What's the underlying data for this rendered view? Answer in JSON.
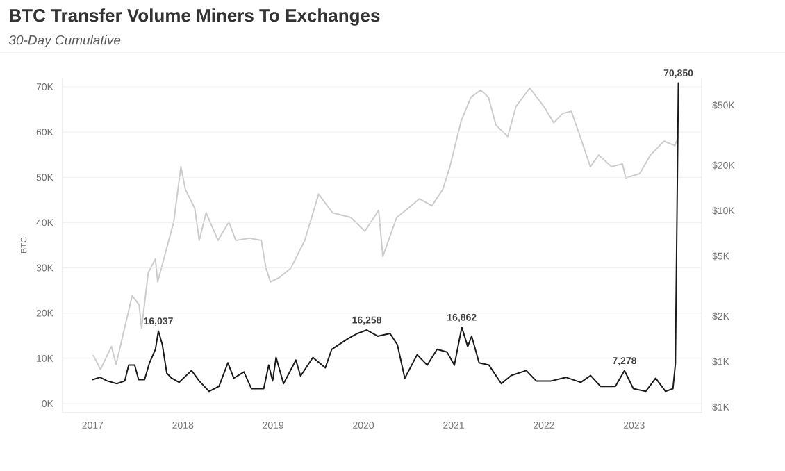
{
  "chart_data": {
    "type": "line",
    "title": "BTC Transfer Volume Miners To Exchanges",
    "subtitle": "30-Day Cumulative",
    "ylabel": "BTC",
    "xlim": [
      "2016-09-01",
      "2023-10-01"
    ],
    "xticks": [
      "2017",
      "2018",
      "2019",
      "2020",
      "2021",
      "2022",
      "2023"
    ],
    "ylim": [
      -2000,
      72000
    ],
    "yticks": [
      {
        "value": 0,
        "label": "0K"
      },
      {
        "value": 10000,
        "label": "10K"
      },
      {
        "value": 20000,
        "label": "20K"
      },
      {
        "value": 30000,
        "label": "30K"
      },
      {
        "value": 40000,
        "label": "40K"
      },
      {
        "value": 50000,
        "label": "50K"
      },
      {
        "value": 60000,
        "label": "60K"
      },
      {
        "value": 70000,
        "label": "70K"
      }
    ],
    "y2lim": [
      460,
      76000
    ],
    "y2ticks": [
      {
        "value": 500,
        "label": "$1K"
      },
      {
        "value": 1000,
        "label": "$1K"
      },
      {
        "value": 2000,
        "label": "$2K"
      },
      {
        "value": 5000,
        "label": "$5K"
      },
      {
        "value": 10000,
        "label": "$10K"
      },
      {
        "value": 20000,
        "label": "$20K"
      },
      {
        "value": 50000,
        "label": "$50K"
      }
    ],
    "log": "y2",
    "grid": "y",
    "series": [
      {
        "color": "#cccccc",
        "axis": "y2",
        "x": [
          "2017-01-04",
          "2017-02-02",
          "2017-03-18",
          "2017-04-06",
          "2017-06-10",
          "2017-07-08",
          "2017-07-18",
          "2017-08-14",
          "2017-09-12",
          "2017-09-21",
          "2017-11-25",
          "2017-12-24",
          "2018-01-11",
          "2018-02-18",
          "2018-03-08",
          "2018-04-05",
          "2018-05-23",
          "2018-07-06",
          "2018-08-03",
          "2018-09-28",
          "2018-11-14",
          "2018-12-03",
          "2018-12-21",
          "2019-01-27",
          "2019-03-14",
          "2019-05-09",
          "2019-07-04",
          "2019-08-29",
          "2019-11-11",
          "2020-01-07",
          "2020-03-03",
          "2020-03-20",
          "2020-05-15",
          "2020-07-01",
          "2020-08-15",
          "2020-10-05",
          "2020-11-18",
          "2020-12-17",
          "2021-02-01",
          "2021-03-12",
          "2021-04-20",
          "2021-05-22",
          "2021-06-21",
          "2021-08-08",
          "2021-09-10",
          "2021-11-05",
          "2022-01-01",
          "2022-02-10",
          "2022-03-19",
          "2022-04-22",
          "2022-05-31",
          "2022-07-08",
          "2022-08-11",
          "2022-10-01",
          "2022-11-15",
          "2022-11-28",
          "2023-01-23",
          "2023-03-08",
          "2023-05-02",
          "2023-06-15",
          "2023-06-28"
        ],
        "values": [
          1100,
          890,
          1260,
          960,
          2740,
          2380,
          1670,
          3890,
          4800,
          3380,
          8430,
          19600,
          13850,
          10400,
          6370,
          9700,
          6370,
          8430,
          6370,
          6580,
          6370,
          4170,
          3380,
          3620,
          4170,
          6370,
          12900,
          9700,
          9030,
          7330,
          10080,
          4980,
          9030,
          10400,
          12000,
          10800,
          13850,
          19600,
          39600,
          56500,
          63000,
          56500,
          37000,
          31000,
          49000,
          65000,
          49000,
          38300,
          44200,
          45600,
          29900,
          19600,
          23400,
          19600,
          20400,
          16500,
          17600,
          23400,
          28900,
          27000,
          31000
        ]
      },
      {
        "color": "#1a1a1a",
        "x": [
          "2017-01-01",
          "2017-01-31",
          "2017-03-01",
          "2017-04-09",
          "2017-05-11",
          "2017-05-27",
          "2017-06-20",
          "2017-07-06",
          "2017-07-30",
          "2017-08-19",
          "2017-09-12",
          "2017-09-24",
          "2017-10-10",
          "2017-10-28",
          "2017-11-17",
          "2017-12-17",
          "2018-02-05",
          "2018-03-08",
          "2018-04-17",
          "2018-05-27",
          "2018-07-02",
          "2018-07-26",
          "2018-09-05",
          "2018-10-05",
          "2018-11-24",
          "2018-12-14",
          "2018-12-30",
          "2019-01-13",
          "2019-02-12",
          "2019-04-03",
          "2019-04-22",
          "2019-06-11",
          "2019-07-31",
          "2019-08-26",
          "2019-10-29",
          "2019-12-08",
          "2020-01-15",
          "2020-02-28",
          "2020-04-18",
          "2020-05-18",
          "2020-06-17",
          "2020-08-06",
          "2020-09-16",
          "2020-10-26",
          "2020-12-05",
          "2021-01-04",
          "2021-02-03",
          "2021-02-27",
          "2021-03-15",
          "2021-04-14",
          "2021-05-24",
          "2021-07-13",
          "2021-08-22",
          "2021-10-22",
          "2021-12-01",
          "2022-01-30",
          "2022-03-31",
          "2022-05-30",
          "2022-07-09",
          "2022-08-18",
          "2022-10-17",
          "2022-11-23",
          "2022-12-29",
          "2023-02-17",
          "2023-03-29",
          "2023-05-08",
          "2023-06-07",
          "2023-06-17",
          "2023-06-29"
        ],
        "values": [
          5300,
          5800,
          5000,
          4400,
          5000,
          8500,
          8500,
          5300,
          5300,
          9000,
          12000,
          16037,
          13000,
          6700,
          5600,
          4700,
          7300,
          5000,
          2700,
          3800,
          9000,
          5600,
          7000,
          3300,
          3300,
          8500,
          5000,
          10200,
          4400,
          9600,
          6100,
          10200,
          7900,
          12000,
          14300,
          15500,
          16258,
          14900,
          15500,
          13000,
          5600,
          10800,
          8500,
          12000,
          11400,
          8500,
          16862,
          12600,
          14900,
          9000,
          8500,
          4400,
          6200,
          7300,
          5000,
          5000,
          5800,
          4700,
          6200,
          3800,
          3800,
          7278,
          3300,
          2700,
          5600,
          2700,
          3300,
          8800,
          70850
        ]
      }
    ],
    "annotations": [
      {
        "text": "16,037",
        "x": "2017-09-24",
        "y": 16037
      },
      {
        "text": "16,258",
        "x": "2020-01-15",
        "y": 16258
      },
      {
        "text": "16,862",
        "x": "2021-02-03",
        "y": 16862
      },
      {
        "text": "7,278",
        "x": "2022-11-23",
        "y": 7278
      },
      {
        "text": "70,850",
        "x": "2023-06-29",
        "y": 70850
      }
    ]
  }
}
